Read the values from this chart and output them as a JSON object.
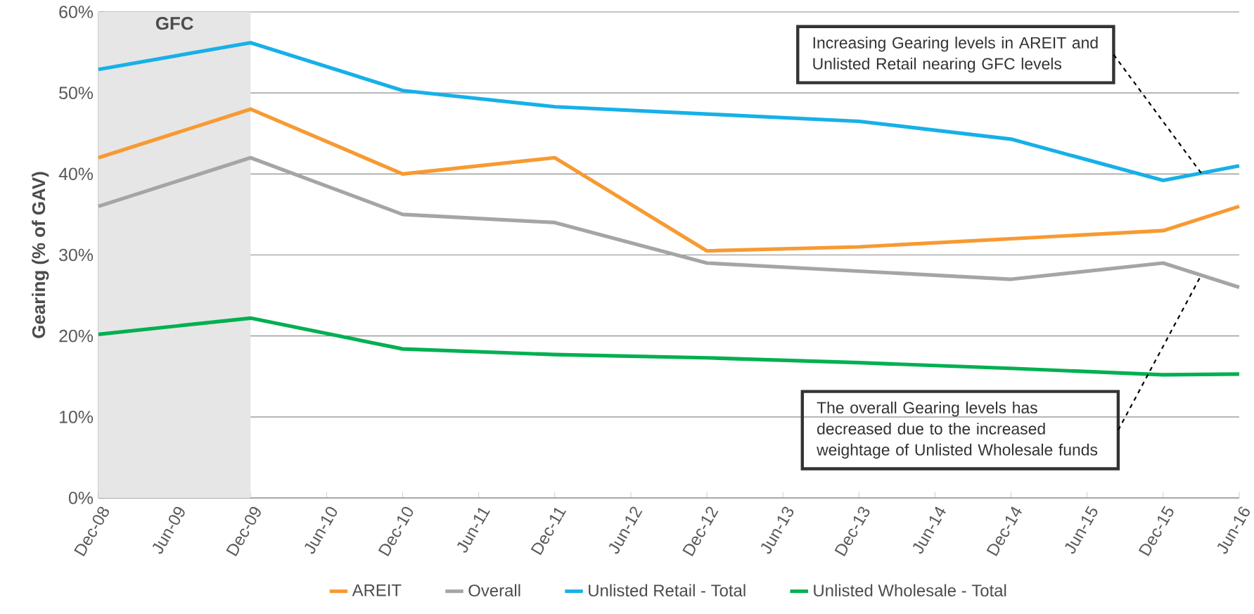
{
  "chart_data": {
    "type": "line",
    "ylabel": "Gearing (% of GAV)",
    "x": [
      "2008-12",
      "2009-12",
      "2010-12",
      "2011-12",
      "2012-12",
      "2013-12",
      "2014-12",
      "2015-12",
      "2016-06"
    ],
    "series": [
      {
        "name": "AREIT",
        "color": "#f79a32",
        "values": [
          42,
          48,
          40,
          42,
          30.5,
          31,
          32,
          33,
          36
        ]
      },
      {
        "name": "Overall",
        "color": "#a5a5a5",
        "values": [
          36,
          42,
          35,
          34,
          29,
          28,
          27,
          29,
          26
        ]
      },
      {
        "name": "Unlisted Retail - Total",
        "color": "#17b0e8",
        "values": [
          52.9,
          56.2,
          50.3,
          48.3,
          47.4,
          46.5,
          44.3,
          39.2,
          41.0
        ]
      },
      {
        "name": "Unlisted Wholesale - Total",
        "color": "#00b050",
        "values": [
          20.2,
          22.2,
          18.4,
          17.7,
          17.3,
          16.7,
          16.0,
          15.2,
          15.3
        ]
      }
    ],
    "xlim": [
      "2008-12",
      "2016-06"
    ],
    "xticks": [
      {
        "value": "2008-12",
        "label": "Dec-08"
      },
      {
        "value": "2009-06",
        "label": "Jun-09"
      },
      {
        "value": "2009-12",
        "label": "Dec-09"
      },
      {
        "value": "2010-06",
        "label": "Jun-10"
      },
      {
        "value": "2010-12",
        "label": "Dec-10"
      },
      {
        "value": "2011-06",
        "label": "Jun-11"
      },
      {
        "value": "2011-12",
        "label": "Dec-11"
      },
      {
        "value": "2012-06",
        "label": "Jun-12"
      },
      {
        "value": "2012-12",
        "label": "Dec-12"
      },
      {
        "value": "2013-06",
        "label": "Jun-13"
      },
      {
        "value": "2013-12",
        "label": "Dec-13"
      },
      {
        "value": "2014-06",
        "label": "Jun-14"
      },
      {
        "value": "2014-12",
        "label": "Dec-14"
      },
      {
        "value": "2015-06",
        "label": "Jun-15"
      },
      {
        "value": "2015-12",
        "label": "Dec-15"
      },
      {
        "value": "2016-06",
        "label": "Jun-16"
      }
    ],
    "ylim": [
      0,
      60
    ],
    "yticks": [
      {
        "value": 0,
        "label": "0%"
      },
      {
        "value": 10,
        "label": "10%"
      },
      {
        "value": 20,
        "label": "20%"
      },
      {
        "value": 30,
        "label": "30%"
      },
      {
        "value": 40,
        "label": "40%"
      },
      {
        "value": 50,
        "label": "50%"
      },
      {
        "value": 60,
        "label": "60%"
      }
    ],
    "grid": "y",
    "legend": "bottom",
    "bands": [
      {
        "axis": "x",
        "from": "2008-12",
        "to": "2009-12",
        "label": "GFC",
        "color": "#e6e6e6"
      }
    ],
    "annotations": [
      {
        "text": "Increasing Gearing levels in AREIT and Unlisted Retail nearing GFC levels",
        "x": "2016-03",
        "y": 40.1
      },
      {
        "text": "The overall Gearing levels has decreased due to the increased weightage of Unlisted Wholesale funds",
        "x": "2016-03",
        "y": 27.5
      }
    ]
  }
}
